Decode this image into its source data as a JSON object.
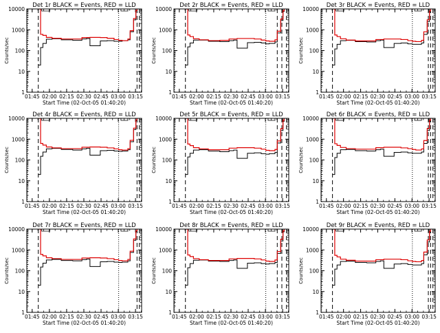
{
  "figure": {
    "xlabel": "Start Time (02-Oct-05 01:40:20)",
    "ylabel": "Counts/sec",
    "x_ticks": [
      "01:45",
      "02:00",
      "02:15",
      "02:30",
      "02:45",
      "03:00",
      "03:15"
    ],
    "y_ticks": [
      "1",
      "10",
      "100",
      "1000",
      "10000"
    ]
  },
  "chart_data": [
    {
      "type": "line",
      "title": "Det 1r BLACK = Events, RED = LLD",
      "x_unit": "minutes after 01:40:20",
      "xlim": [
        0,
        100
      ],
      "ylim": [
        1,
        10000
      ],
      "yscale": "log",
      "dotted_markers_x": [
        0.5,
        80
      ],
      "dashed_markers_x": [
        10,
        96,
        98
      ],
      "series": [
        {
          "name": "Events",
          "color": "#000000",
          "x": [
            10,
            12,
            14,
            17,
            22,
            30,
            40,
            48,
            52,
            55,
            63,
            64,
            70,
            76,
            80,
            83,
            88,
            90,
            93,
            95,
            96
          ],
          "y": [
            20,
            140,
            220,
            350,
            370,
            330,
            310,
            360,
            380,
            170,
            170,
            290,
            300,
            280,
            280,
            300,
            330,
            800,
            3000,
            8000,
            10000
          ]
        },
        {
          "name": "LLD",
          "color": "#dd0000",
          "x": [
            10,
            12,
            14,
            17,
            22,
            30,
            40,
            48,
            55,
            64,
            70,
            76,
            80,
            83,
            88,
            90,
            93,
            95,
            96
          ],
          "y": [
            10000,
            600,
            540,
            430,
            390,
            360,
            360,
            420,
            430,
            420,
            390,
            340,
            310,
            300,
            360,
            900,
            3500,
            8500,
            10000
          ]
        }
      ]
    },
    {
      "type": "line",
      "title": "Det 2r BLACK = Events, RED = LLD",
      "x_unit": "minutes after 01:40:20",
      "xlim": [
        0,
        100
      ],
      "ylim": [
        1,
        10000
      ],
      "yscale": "log",
      "dotted_markers_x": [
        0.5,
        80
      ],
      "dashed_markers_x": [
        10,
        90,
        94,
        98
      ],
      "series": [
        {
          "name": "Events",
          "color": "#000000",
          "x": [
            10,
            12,
            14,
            17,
            22,
            30,
            40,
            48,
            52,
            55,
            63,
            64,
            70,
            76,
            80,
            83,
            88,
            90,
            93,
            95,
            96
          ],
          "y": [
            20,
            150,
            230,
            320,
            320,
            280,
            270,
            300,
            320,
            130,
            130,
            240,
            250,
            230,
            210,
            220,
            260,
            700,
            2800,
            7500,
            10000
          ]
        },
        {
          "name": "LLD",
          "color": "#dd0000",
          "x": [
            10,
            12,
            14,
            17,
            22,
            30,
            40,
            48,
            55,
            64,
            70,
            76,
            80,
            83,
            88,
            90,
            93,
            95,
            96
          ],
          "y": [
            10000,
            560,
            470,
            370,
            330,
            300,
            310,
            360,
            380,
            380,
            360,
            320,
            290,
            280,
            330,
            850,
            3300,
            8200,
            10000
          ]
        }
      ]
    },
    {
      "type": "line",
      "title": "Det 3r BLACK = Events, RED = LLD",
      "x_unit": "minutes after 01:40:20",
      "xlim": [
        0,
        100
      ],
      "ylim": [
        1,
        10000
      ],
      "yscale": "log",
      "dotted_markers_x": [
        0.5,
        80
      ],
      "dashed_markers_x": [
        10,
        94,
        96,
        98
      ],
      "series": [
        {
          "name": "Events",
          "color": "#000000",
          "x": [
            10,
            12,
            14,
            17,
            22,
            30,
            40,
            48,
            52,
            55,
            63,
            64,
            70,
            76,
            80,
            83,
            88,
            90,
            93,
            95,
            96
          ],
          "y": [
            20,
            120,
            200,
            300,
            310,
            270,
            260,
            300,
            320,
            140,
            140,
            220,
            230,
            210,
            200,
            200,
            230,
            600,
            2500,
            7000,
            10000
          ]
        },
        {
          "name": "LLD",
          "color": "#dd0000",
          "x": [
            10,
            12,
            14,
            17,
            22,
            30,
            40,
            48,
            55,
            64,
            70,
            76,
            80,
            83,
            88,
            90,
            93,
            95,
            96
          ],
          "y": [
            10000,
            560,
            470,
            370,
            320,
            290,
            290,
            340,
            360,
            360,
            340,
            300,
            280,
            270,
            310,
            800,
            3000,
            8000,
            10000
          ]
        }
      ]
    },
    {
      "type": "line",
      "title": "Det 4r BLACK = Events, RED = LLD",
      "x_unit": "minutes after 01:40:20",
      "xlim": [
        0,
        100
      ],
      "ylim": [
        1,
        10000
      ],
      "yscale": "log",
      "dotted_markers_x": [
        0.5,
        80
      ],
      "dashed_markers_x": [
        10,
        96,
        98
      ],
      "series": [
        {
          "name": "Events",
          "color": "#000000",
          "x": [
            10,
            12,
            14,
            17,
            22,
            30,
            40,
            48,
            52,
            55,
            63,
            64,
            70,
            76,
            80,
            83,
            88,
            90,
            93,
            95,
            96
          ],
          "y": [
            20,
            150,
            240,
            340,
            360,
            320,
            300,
            340,
            360,
            170,
            170,
            280,
            290,
            270,
            260,
            270,
            310,
            750,
            2900,
            7800,
            10000
          ]
        },
        {
          "name": "LLD",
          "color": "#dd0000",
          "x": [
            10,
            12,
            14,
            17,
            22,
            30,
            40,
            48,
            55,
            64,
            70,
            76,
            80,
            83,
            88,
            90,
            93,
            95,
            96
          ],
          "y": [
            10000,
            620,
            520,
            420,
            380,
            350,
            350,
            410,
            420,
            410,
            380,
            340,
            310,
            300,
            350,
            880,
            3400,
            8400,
            10000
          ]
        }
      ]
    },
    {
      "type": "line",
      "title": "Det 5r BLACK = Events, RED = LLD",
      "x_unit": "minutes after 01:40:20",
      "xlim": [
        0,
        100
      ],
      "ylim": [
        1,
        10000
      ],
      "yscale": "log",
      "dotted_markers_x": [
        0.5,
        80
      ],
      "dashed_markers_x": [
        10,
        90,
        94,
        98
      ],
      "series": [
        {
          "name": "Events",
          "color": "#000000",
          "x": [
            10,
            12,
            14,
            17,
            22,
            30,
            40,
            48,
            52,
            55,
            63,
            64,
            70,
            76,
            80,
            83,
            88,
            90,
            93,
            95,
            96
          ],
          "y": [
            20,
            140,
            210,
            300,
            310,
            270,
            250,
            280,
            300,
            120,
            120,
            210,
            220,
            200,
            190,
            200,
            230,
            650,
            2600,
            7200,
            10000
          ]
        },
        {
          "name": "LLD",
          "color": "#dd0000",
          "x": [
            10,
            12,
            14,
            17,
            22,
            30,
            40,
            48,
            55,
            64,
            70,
            76,
            80,
            83,
            88,
            90,
            93,
            95,
            96
          ],
          "y": [
            10000,
            580,
            490,
            390,
            340,
            310,
            310,
            370,
            390,
            390,
            370,
            330,
            290,
            280,
            320,
            820,
            3200,
            8100,
            10000
          ]
        }
      ]
    },
    {
      "type": "line",
      "title": "Det 6r BLACK = Events, RED = LLD",
      "x_unit": "minutes after 01:40:20",
      "xlim": [
        0,
        100
      ],
      "ylim": [
        1,
        10000
      ],
      "yscale": "log",
      "dotted_markers_x": [
        0.5,
        80
      ],
      "dashed_markers_x": [
        10,
        94,
        96,
        98
      ],
      "series": [
        {
          "name": "Events",
          "color": "#000000",
          "x": [
            10,
            12,
            14,
            17,
            22,
            30,
            40,
            48,
            52,
            55,
            63,
            64,
            70,
            76,
            80,
            83,
            88,
            90,
            93,
            95,
            96
          ],
          "y": [
            20,
            130,
            210,
            310,
            320,
            280,
            270,
            310,
            330,
            150,
            150,
            230,
            240,
            220,
            210,
            210,
            240,
            620,
            2600,
            7100,
            10000
          ]
        },
        {
          "name": "LLD",
          "color": "#dd0000",
          "x": [
            10,
            12,
            14,
            17,
            22,
            30,
            40,
            48,
            55,
            64,
            70,
            76,
            80,
            83,
            88,
            90,
            93,
            95,
            96
          ],
          "y": [
            10000,
            600,
            500,
            400,
            350,
            330,
            330,
            390,
            410,
            410,
            380,
            350,
            320,
            300,
            340,
            860,
            3300,
            8200,
            10000
          ]
        }
      ]
    },
    {
      "type": "line",
      "title": "Det 7r BLACK = Events, RED = LLD",
      "x_unit": "minutes after 01:40:20",
      "xlim": [
        0,
        100
      ],
      "ylim": [
        1,
        10000
      ],
      "yscale": "log",
      "dotted_markers_x": [
        0.5,
        80
      ],
      "dashed_markers_x": [
        10,
        96,
        98
      ],
      "series": [
        {
          "name": "Events",
          "color": "#000000",
          "x": [
            10,
            12,
            14,
            17,
            22,
            30,
            40,
            48,
            52,
            55,
            63,
            64,
            70,
            76,
            80,
            83,
            88,
            90,
            93,
            95,
            96
          ],
          "y": [
            20,
            150,
            230,
            330,
            350,
            310,
            300,
            340,
            360,
            160,
            160,
            270,
            280,
            260,
            250,
            260,
            300,
            760,
            2900,
            7700,
            10000
          ]
        },
        {
          "name": "LLD",
          "color": "#dd0000",
          "x": [
            10,
            12,
            14,
            17,
            22,
            30,
            40,
            48,
            55,
            64,
            70,
            76,
            80,
            83,
            88,
            90,
            93,
            95,
            96
          ],
          "y": [
            10000,
            610,
            520,
            420,
            380,
            350,
            350,
            410,
            420,
            410,
            380,
            340,
            310,
            300,
            350,
            870,
            3400,
            8300,
            10000
          ]
        }
      ]
    },
    {
      "type": "line",
      "title": "Det 8r BLACK = Events, RED = LLD",
      "x_unit": "minutes after 01:40:20",
      "xlim": [
        0,
        100
      ],
      "ylim": [
        1,
        10000
      ],
      "yscale": "log",
      "dotted_markers_x": [
        0.5,
        80
      ],
      "dashed_markers_x": [
        10,
        90,
        94,
        98
      ],
      "series": [
        {
          "name": "Events",
          "color": "#000000",
          "x": [
            10,
            12,
            14,
            17,
            22,
            30,
            40,
            48,
            52,
            55,
            63,
            64,
            70,
            76,
            80,
            83,
            88,
            90,
            93,
            95,
            96
          ],
          "y": [
            20,
            140,
            220,
            320,
            330,
            290,
            280,
            310,
            330,
            130,
            130,
            230,
            240,
            220,
            210,
            220,
            250,
            680,
            2700,
            7400,
            10000
          ]
        },
        {
          "name": "LLD",
          "color": "#dd0000",
          "x": [
            10,
            12,
            14,
            17,
            22,
            30,
            40,
            48,
            55,
            64,
            70,
            76,
            80,
            83,
            88,
            90,
            93,
            95,
            96
          ],
          "y": [
            10000,
            570,
            480,
            380,
            340,
            310,
            310,
            370,
            390,
            390,
            370,
            330,
            290,
            280,
            330,
            840,
            3300,
            8200,
            10000
          ]
        }
      ]
    },
    {
      "type": "line",
      "title": "Det 9r BLACK = Events, RED = LLD",
      "x_unit": "minutes after 01:40:20",
      "xlim": [
        0,
        100
      ],
      "ylim": [
        1,
        10000
      ],
      "yscale": "log",
      "dotted_markers_x": [
        0.5,
        80
      ],
      "dashed_markers_x": [
        10,
        94,
        96,
        98
      ],
      "series": [
        {
          "name": "Events",
          "color": "#000000",
          "x": [
            10,
            12,
            14,
            17,
            22,
            30,
            40,
            48,
            52,
            55,
            63,
            64,
            70,
            76,
            80,
            83,
            88,
            90,
            93,
            95,
            96
          ],
          "y": [
            20,
            120,
            190,
            280,
            290,
            250,
            240,
            280,
            300,
            130,
            130,
            210,
            220,
            200,
            190,
            190,
            220,
            580,
            2400,
            6800,
            10000
          ]
        },
        {
          "name": "LLD",
          "color": "#dd0000",
          "x": [
            10,
            12,
            14,
            17,
            22,
            30,
            40,
            48,
            55,
            64,
            70,
            76,
            80,
            83,
            88,
            90,
            93,
            95,
            96
          ],
          "y": [
            10000,
            550,
            460,
            360,
            320,
            290,
            290,
            340,
            360,
            360,
            340,
            300,
            280,
            270,
            310,
            790,
            3000,
            7900,
            10000
          ]
        }
      ]
    }
  ]
}
